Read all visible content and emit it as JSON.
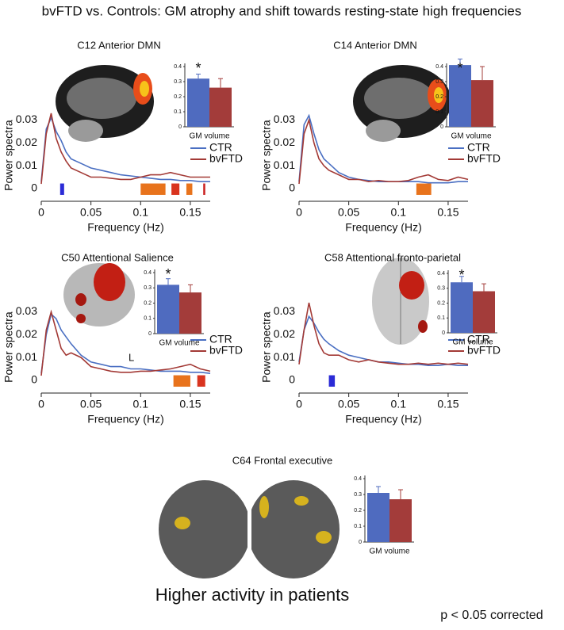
{
  "title": "bvFTD vs. Controls: GM atrophy and shift towards resting-state high frequencies",
  "footer": "Higher activity in patients",
  "note": "p < 0.05 corrected",
  "chart_data": [
    {
      "type": "line",
      "title": "C12 Anterior DMN",
      "xlabel": "Frequency (Hz)",
      "ylabel": "Power spectra",
      "x": [
        0,
        0.005,
        0.01,
        0.015,
        0.02,
        0.025,
        0.03,
        0.04,
        0.05,
        0.06,
        0.07,
        0.08,
        0.09,
        0.1,
        0.11,
        0.12,
        0.13,
        0.14,
        0.15,
        0.16,
        0.17
      ],
      "series": [
        {
          "name": "CTR",
          "color": "#4a6fc2",
          "values": [
            0.003,
            0.026,
            0.031,
            0.025,
            0.021,
            0.016,
            0.013,
            0.011,
            0.009,
            0.008,
            0.007,
            0.006,
            0.0055,
            0.005,
            0.0045,
            0.004,
            0.004,
            0.0035,
            0.0035,
            0.003,
            0.003
          ]
        },
        {
          "name": "bvFTD",
          "color": "#a33a36",
          "values": [
            0.002,
            0.024,
            0.033,
            0.022,
            0.016,
            0.012,
            0.009,
            0.007,
            0.005,
            0.005,
            0.0045,
            0.004,
            0.004,
            0.005,
            0.006,
            0.006,
            0.007,
            0.006,
            0.005,
            0.005,
            0.005
          ]
        }
      ],
      "bands": [
        {
          "from": 0.019,
          "to": 0.023,
          "color": "#2b2bd6"
        },
        {
          "from": 0.1,
          "to": 0.125,
          "color": "#e8731c"
        },
        {
          "from": 0.131,
          "to": 0.139,
          "color": "#d9341f"
        },
        {
          "from": 0.146,
          "to": 0.152,
          "color": "#e8731c"
        },
        {
          "from": 0.163,
          "to": 0.165,
          "color": "#c92020"
        }
      ],
      "xlim": [
        0,
        0.17
      ],
      "xticks": [
        0,
        0.05,
        0.1,
        0.15
      ],
      "ylim": [
        -0.0056,
        0.034
      ],
      "yticks": [
        0,
        0.01,
        0.02,
        0.03
      ],
      "inset": {
        "type": "bar",
        "xlabel": "GM volume",
        "annotation": "*",
        "categories": [
          null,
          null
        ],
        "values": [
          0.32,
          0.26
        ],
        "errors": [
          0.03,
          0.06
        ],
        "colors": [
          "#4f6bbf",
          "#a33c3a"
        ],
        "ylim": [
          0,
          0.4
        ],
        "yticks": [
          0,
          0.1,
          0.2,
          0.3,
          0.4
        ]
      }
    },
    {
      "type": "line",
      "title": "C14 Anterior DMN",
      "xlabel": "Frequency (Hz)",
      "ylabel": "Power spectra",
      "x": [
        0,
        0.005,
        0.01,
        0.015,
        0.02,
        0.025,
        0.03,
        0.04,
        0.05,
        0.06,
        0.07,
        0.08,
        0.09,
        0.1,
        0.11,
        0.12,
        0.13,
        0.14,
        0.15,
        0.16,
        0.17
      ],
      "series": [
        {
          "name": "CTR",
          "color": "#4a6fc2",
          "values": [
            0.003,
            0.028,
            0.032,
            0.024,
            0.017,
            0.013,
            0.011,
            0.007,
            0.005,
            0.004,
            0.0035,
            0.003,
            0.003,
            0.003,
            0.003,
            0.003,
            0.0025,
            0.0025,
            0.0025,
            0.003,
            0.003
          ]
        },
        {
          "name": "bvFTD",
          "color": "#a33a36",
          "values": [
            0.002,
            0.024,
            0.03,
            0.02,
            0.013,
            0.01,
            0.008,
            0.006,
            0.004,
            0.004,
            0.003,
            0.0035,
            0.003,
            0.003,
            0.0035,
            0.005,
            0.006,
            0.004,
            0.0035,
            0.005,
            0.004
          ]
        }
      ],
      "bands": [
        {
          "from": 0.118,
          "to": 0.133,
          "color": "#e8731c"
        }
      ],
      "xlim": [
        0,
        0.17
      ],
      "xticks": [
        0,
        0.05,
        0.1,
        0.15
      ],
      "ylim": [
        -0.0056,
        0.034
      ],
      "yticks": [
        0,
        0.01,
        0.02,
        0.03
      ],
      "inset": {
        "type": "bar",
        "xlabel": "GM volume",
        "annotation": "*",
        "categories": [
          null,
          null
        ],
        "values": [
          0.41,
          0.31
        ],
        "errors": [
          0.04,
          0.09
        ],
        "colors": [
          "#4f6bbf",
          "#a33c3a"
        ],
        "ylim": [
          0,
          0.4
        ],
        "yticks": [
          0,
          0.1,
          0.2,
          0.3,
          0.4
        ]
      }
    },
    {
      "type": "line",
      "title": "C50 Attentional Salience",
      "xlabel": "Frequency (Hz)",
      "ylabel": "Power spectra",
      "annotation": "L",
      "x": [
        0,
        0.005,
        0.01,
        0.015,
        0.02,
        0.025,
        0.03,
        0.04,
        0.05,
        0.06,
        0.07,
        0.08,
        0.09,
        0.1,
        0.11,
        0.12,
        0.13,
        0.14,
        0.15,
        0.16,
        0.17
      ],
      "series": [
        {
          "name": "CTR",
          "color": "#4a6fc2",
          "values": [
            0.003,
            0.02,
            0.029,
            0.027,
            0.022,
            0.019,
            0.016,
            0.011,
            0.008,
            0.007,
            0.006,
            0.006,
            0.005,
            0.005,
            0.0045,
            0.004,
            0.004,
            0.004,
            0.0035,
            0.0035,
            0.003
          ]
        },
        {
          "name": "bvFTD",
          "color": "#a33a36",
          "values": [
            0.002,
            0.022,
            0.03,
            0.022,
            0.014,
            0.011,
            0.012,
            0.01,
            0.006,
            0.005,
            0.004,
            0.0035,
            0.0035,
            0.004,
            0.004,
            0.0045,
            0.005,
            0.006,
            0.007,
            0.005,
            0.004
          ]
        }
      ],
      "bands": [
        {
          "from": 0.133,
          "to": 0.15,
          "color": "#e8731c"
        },
        {
          "from": 0.157,
          "to": 0.165,
          "color": "#d9341f"
        }
      ],
      "xlim": [
        0,
        0.17
      ],
      "xticks": [
        0,
        0.05,
        0.1,
        0.15
      ],
      "ylim": [
        -0.0056,
        0.034
      ],
      "yticks": [
        0,
        0.01,
        0.02,
        0.03
      ],
      "inset": {
        "type": "bar",
        "xlabel": "GM volume",
        "annotation": "*",
        "categories": [
          null,
          null
        ],
        "values": [
          0.32,
          0.27
        ],
        "errors": [
          0.04,
          0.05
        ],
        "colors": [
          "#4f6bbf",
          "#a33c3a"
        ],
        "ylim": [
          0,
          0.4
        ],
        "yticks": [
          0,
          0.1,
          0.2,
          0.3,
          0.4
        ]
      }
    },
    {
      "type": "line",
      "title": "C58 Attentional fronto-parietal",
      "xlabel": "Frequency (Hz)",
      "ylabel": "Power spectra",
      "x": [
        0,
        0.005,
        0.01,
        0.015,
        0.02,
        0.025,
        0.03,
        0.04,
        0.05,
        0.06,
        0.07,
        0.08,
        0.09,
        0.1,
        0.11,
        0.12,
        0.13,
        0.14,
        0.15,
        0.16,
        0.17
      ],
      "series": [
        {
          "name": "CTR",
          "color": "#4a6fc2",
          "values": [
            0.008,
            0.022,
            0.028,
            0.025,
            0.021,
            0.018,
            0.016,
            0.013,
            0.011,
            0.01,
            0.009,
            0.008,
            0.008,
            0.0075,
            0.007,
            0.007,
            0.0065,
            0.0065,
            0.007,
            0.0065,
            0.0065
          ]
        },
        {
          "name": "bvFTD",
          "color": "#a33a36",
          "values": [
            0.007,
            0.022,
            0.034,
            0.024,
            0.016,
            0.012,
            0.011,
            0.011,
            0.009,
            0.008,
            0.009,
            0.008,
            0.0075,
            0.007,
            0.007,
            0.0075,
            0.007,
            0.0075,
            0.007,
            0.0075,
            0.007
          ]
        }
      ],
      "bands": [
        {
          "from": 0.03,
          "to": 0.036,
          "color": "#2b2bd6"
        }
      ],
      "xlim": [
        0,
        0.17
      ],
      "xticks": [
        0,
        0.05,
        0.1,
        0.15
      ],
      "ylim": [
        -0.0056,
        0.034
      ],
      "yticks": [
        0,
        0.01,
        0.02,
        0.03
      ],
      "inset": {
        "type": "bar",
        "xlabel": "GM volume",
        "annotation": "*",
        "categories": [
          null,
          null
        ],
        "values": [
          0.34,
          0.28
        ],
        "errors": [
          0.04,
          0.05
        ],
        "colors": [
          "#4f6bbf",
          "#a33c3a"
        ],
        "ylim": [
          0,
          0.4
        ],
        "yticks": [
          0,
          0.1,
          0.2,
          0.3,
          0.4
        ]
      }
    },
    {
      "type": "bar",
      "title": "C64 Frontal executive",
      "xlabel": "GM volume",
      "categories": [
        null,
        null
      ],
      "values": [
        0.31,
        0.27
      ],
      "errors": [
        0.04,
        0.06
      ],
      "colors": [
        "#4f6bbf",
        "#a33c3a"
      ],
      "ylim": [
        0,
        0.4
      ],
      "yticks": [
        0,
        0.1,
        0.2,
        0.3,
        0.4
      ]
    }
  ]
}
